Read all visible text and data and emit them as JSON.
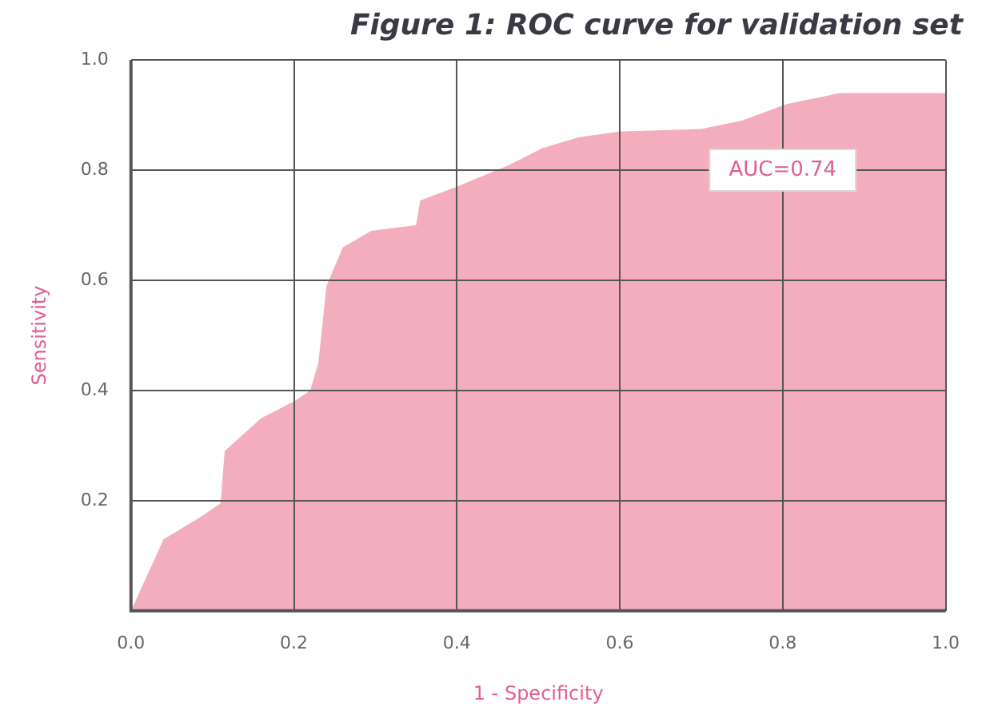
{
  "chart_data": {
    "type": "area",
    "title": "Figure 1: ROC curve for validation set",
    "xlabel": "1 - Specificity",
    "ylabel": "Sensitivity",
    "annotations": [
      "AUC=0.74"
    ],
    "x": [
      0,
      0.04,
      0.085,
      0.11,
      0.115,
      0.16,
      0.2,
      0.22,
      0.23,
      0.24,
      0.26,
      0.295,
      0.35,
      0.355,
      0.4,
      0.465,
      0.505,
      0.55,
      0.6,
      0.7,
      0.75,
      0.805,
      0.87,
      1.0
    ],
    "series": [
      {
        "color": "#f4adbd",
        "values": [
          0,
          0.13,
          0.17,
          0.195,
          0.29,
          0.35,
          0.38,
          0.4,
          0.45,
          0.59,
          0.66,
          0.69,
          0.7,
          0.745,
          0.77,
          0.81,
          0.84,
          0.86,
          0.87,
          0.875,
          0.89,
          0.92,
          0.94,
          0.94
        ]
      }
    ],
    "xlim": [
      0,
      1
    ],
    "xticks": [
      {
        "value": 0,
        "label": "0.0"
      },
      0.2,
      0.4,
      0.6,
      0.8,
      {
        "value": 1,
        "label": "1.0"
      }
    ],
    "ylim": [
      0,
      1
    ],
    "yticks": [
      {
        "value": 0,
        "label": null
      },
      0.2,
      0.4,
      0.6,
      0.8,
      {
        "value": 1,
        "label": "1.0"
      }
    ],
    "grid": true,
    "legend": false,
    "marker": "none"
  }
}
